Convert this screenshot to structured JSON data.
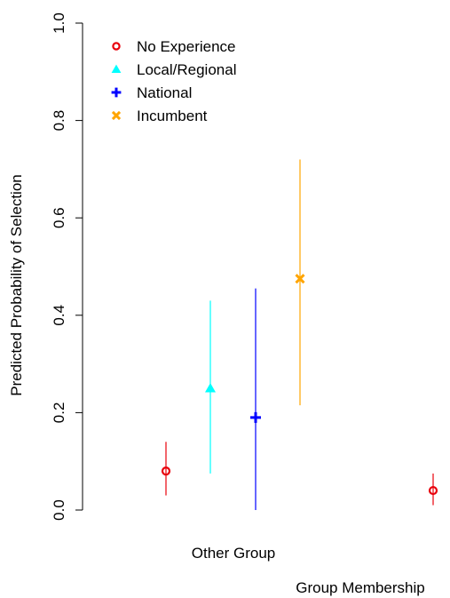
{
  "chart_data": {
    "type": "scatter",
    "title": "",
    "xlabel": "Group Membership",
    "ylabel": "Predicted Probability of Selection",
    "ylim": [
      0.0,
      1.0
    ],
    "yticks": [
      "0.0",
      "0.2",
      "0.4",
      "0.6",
      "0.8",
      "1.0"
    ],
    "x_tick_labels": [
      "Other Group"
    ],
    "grid": false,
    "legend_position": "top-left",
    "series": [
      {
        "name": "No Experience",
        "color": "#e8000b",
        "marker": "circle-open",
        "points": [
          {
            "group": "Other Group",
            "y": 0.08,
            "lower": 0.03,
            "upper": 0.14
          },
          {
            "group": "",
            "y": 0.04,
            "lower": 0.01,
            "upper": 0.075
          }
        ]
      },
      {
        "name": "Local/Regional",
        "color": "#00ffff",
        "marker": "triangle",
        "points": [
          {
            "group": "Other Group",
            "y": 0.25,
            "lower": 0.075,
            "upper": 0.43
          }
        ]
      },
      {
        "name": "National",
        "color": "#0000ff",
        "marker": "plus",
        "points": [
          {
            "group": "Other Group",
            "y": 0.19,
            "lower": 0.0,
            "upper": 0.455
          }
        ]
      },
      {
        "name": "Incumbent",
        "color": "#ffa500",
        "marker": "cross",
        "points": [
          {
            "group": "Other Group",
            "y": 0.475,
            "lower": 0.215,
            "upper": 0.72
          }
        ]
      }
    ]
  }
}
